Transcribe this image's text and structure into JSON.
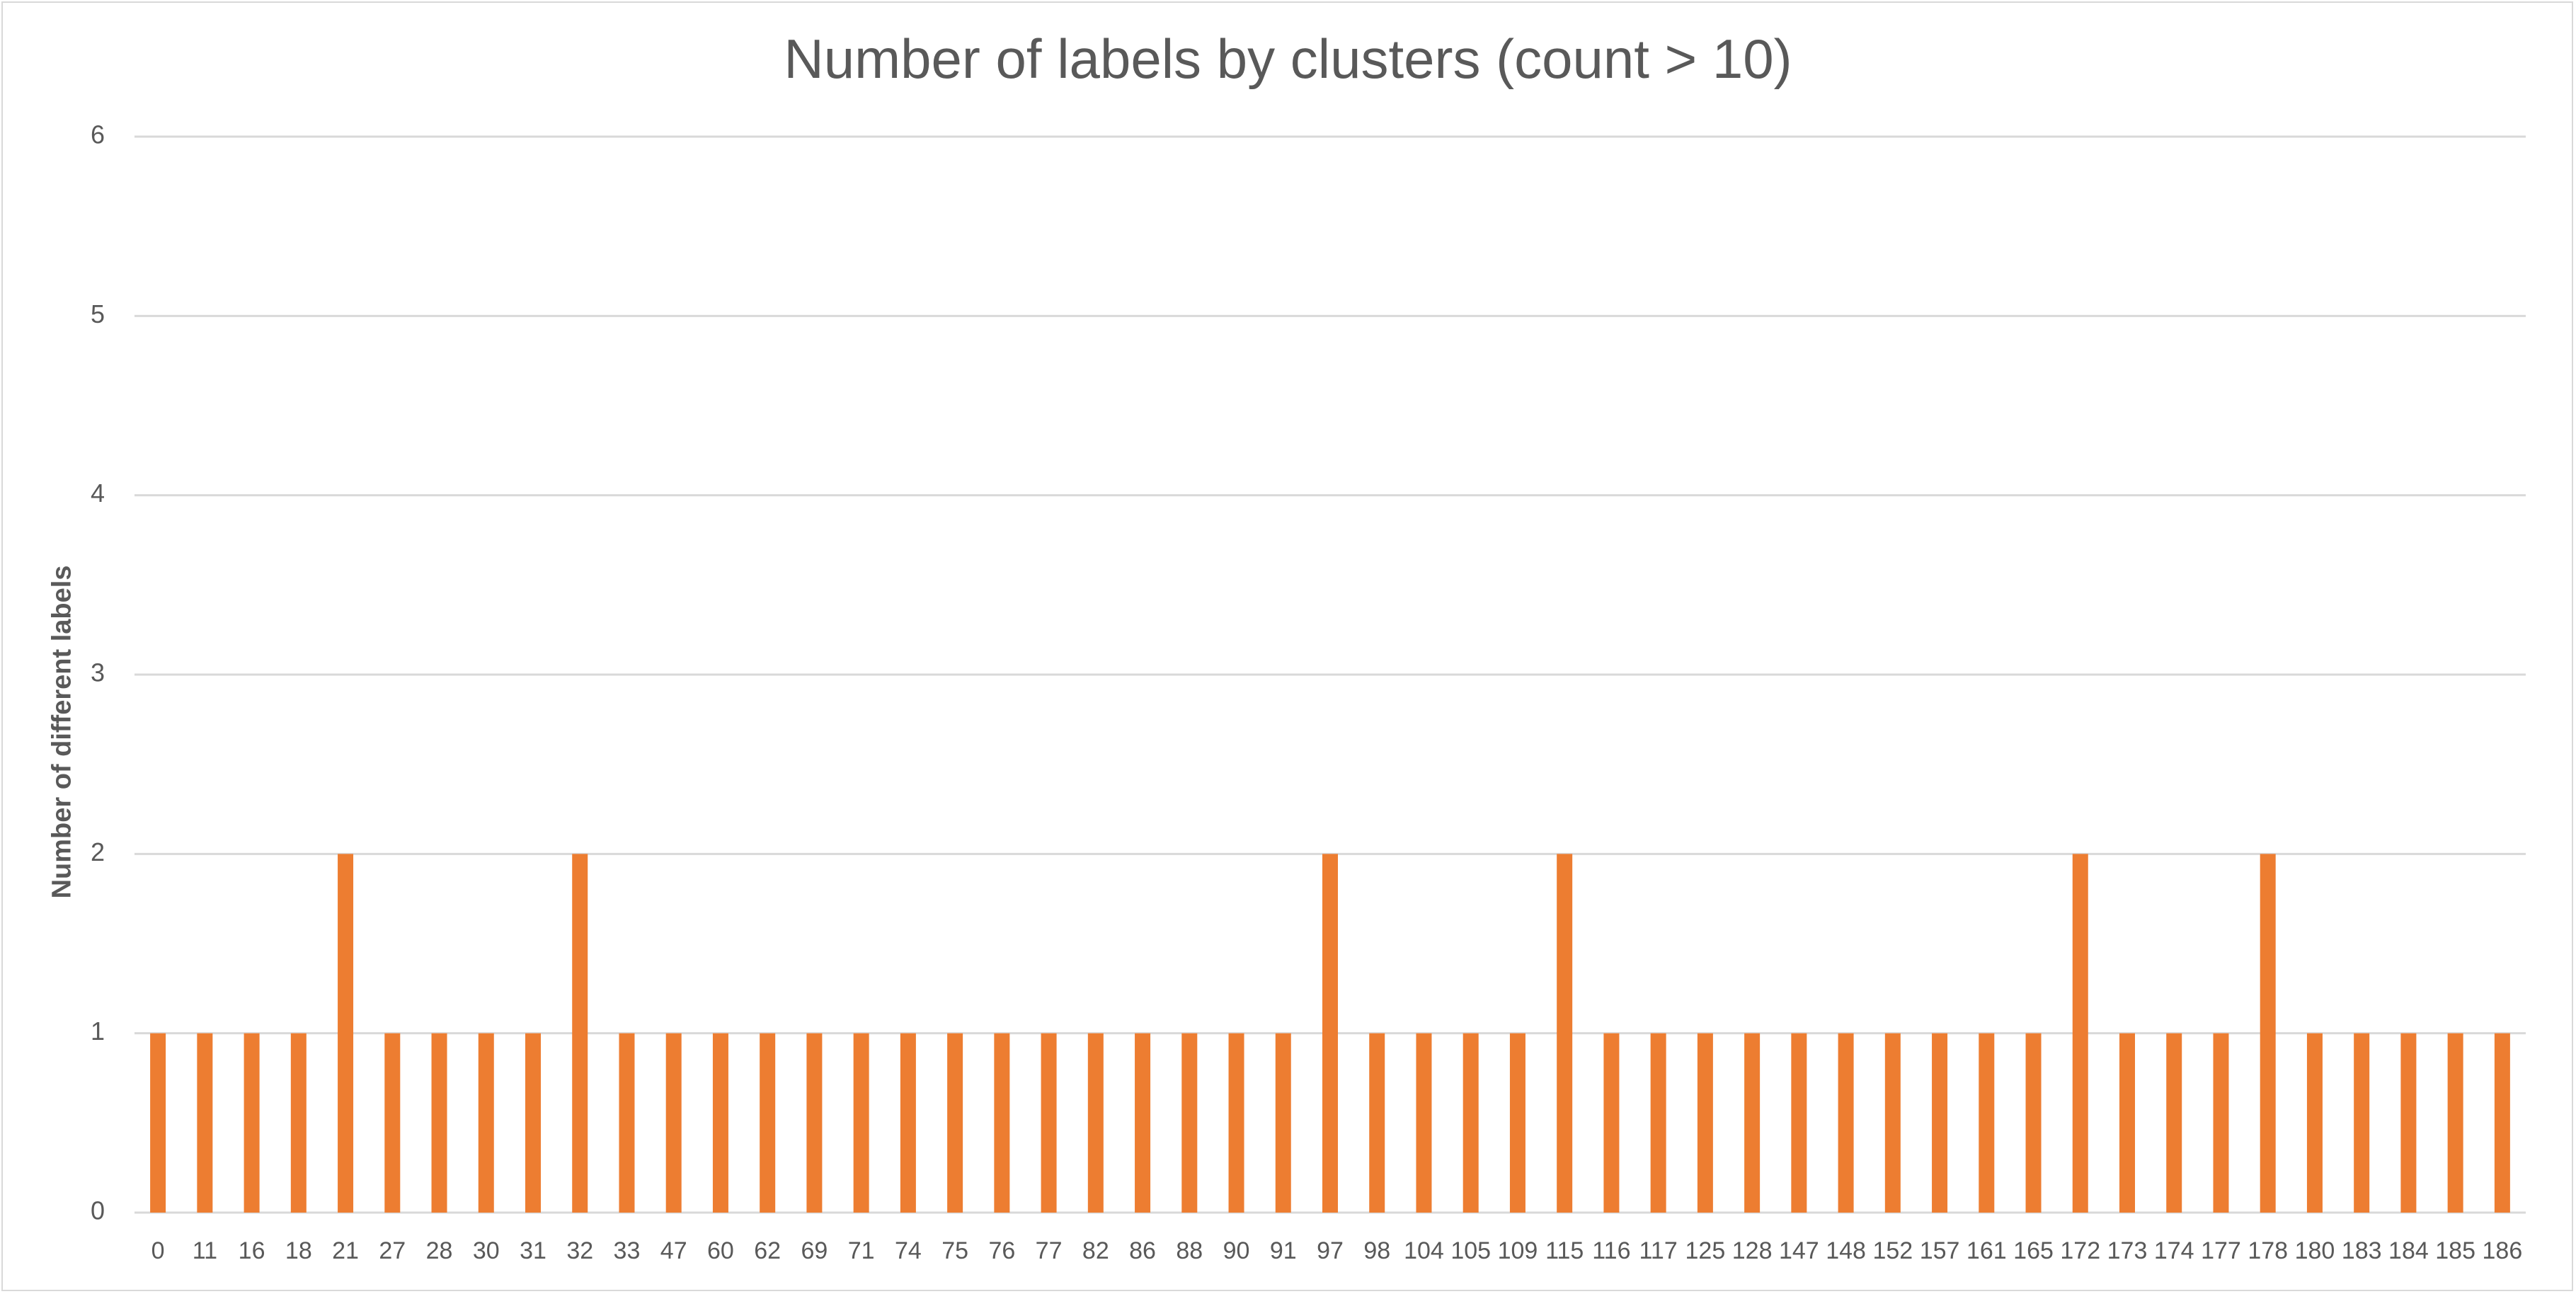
{
  "chart_data": {
    "type": "bar",
    "title": "Number of labels by clusters (count > 10)",
    "xlabel": "",
    "ylabel": "Number of different labels",
    "ylim": [
      0,
      6
    ],
    "yticks": [
      "0",
      "1",
      "2",
      "3",
      "4",
      "5",
      "6"
    ],
    "grid": true,
    "legend": "none",
    "bar_color": "#ed7d31",
    "categories": [
      "0",
      "11",
      "16",
      "18",
      "21",
      "27",
      "28",
      "30",
      "31",
      "32",
      "33",
      "47",
      "60",
      "62",
      "69",
      "71",
      "74",
      "75",
      "76",
      "77",
      "82",
      "86",
      "88",
      "90",
      "91",
      "97",
      "98",
      "104",
      "105",
      "109",
      "115",
      "116",
      "117",
      "125",
      "128",
      "147",
      "148",
      "152",
      "157",
      "161",
      "165",
      "172",
      "173",
      "174",
      "177",
      "178",
      "180",
      "183",
      "184",
      "185",
      "186"
    ],
    "values": [
      1,
      1,
      1,
      1,
      2,
      1,
      1,
      1,
      1,
      2,
      1,
      1,
      1,
      1,
      1,
      1,
      1,
      1,
      1,
      1,
      1,
      1,
      1,
      1,
      1,
      2,
      1,
      1,
      1,
      1,
      2,
      1,
      1,
      1,
      1,
      1,
      1,
      1,
      1,
      1,
      1,
      2,
      1,
      1,
      1,
      2,
      1,
      1,
      1,
      1,
      1
    ]
  }
}
